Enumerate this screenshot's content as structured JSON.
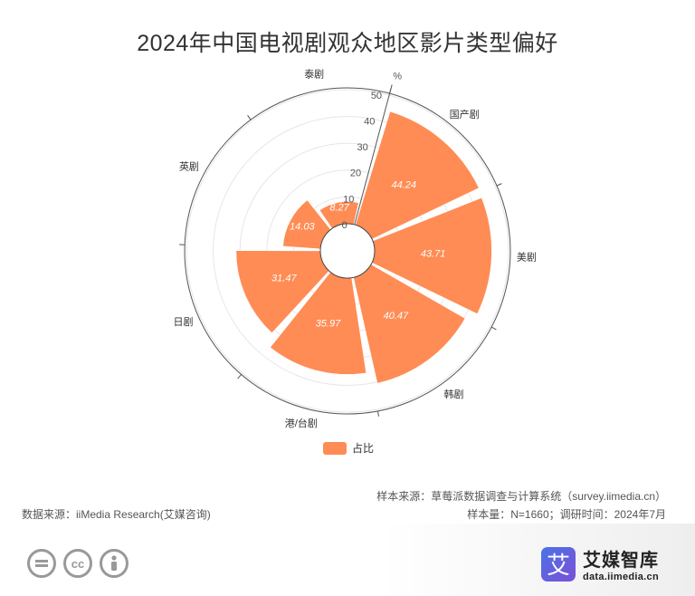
{
  "title": "2024年中国电视剧观众地区影片类型偏好",
  "legend": {
    "label": "占比",
    "color": "#FF8C55"
  },
  "chart_data": {
    "type": "bar",
    "coordinate": "polar",
    "title": "2024年中国电视剧观众地区影片类型偏好",
    "radial_unit": "%",
    "radial_range": [
      0,
      50
    ],
    "radial_ticks": [
      "0",
      "10",
      "20",
      "30",
      "40",
      "50"
    ],
    "categories": [
      "国产剧",
      "美剧",
      "韩剧",
      "港/台剧",
      "日剧",
      "英剧",
      "泰剧"
    ],
    "series": [
      {
        "name": "占比",
        "color": "#FF8C55",
        "values": [
          44.24,
          43.71,
          40.47,
          35.97,
          31.47,
          14.03,
          8.27
        ],
        "labels": [
          "44.24",
          "43.71",
          "40.47",
          "35.97",
          "31.47",
          "14.03",
          "8.27"
        ]
      }
    ],
    "grid": true
  },
  "footer": {
    "data_source": "数据来源：iiMedia Research(艾媒咨询)",
    "sample_source": "样本来源：草莓派数据调查与计算系统（survey.iimedia.cn）",
    "sample_meta": "样本量：N=1660；调研时间：2024年7月"
  },
  "brand": {
    "logo_glyph": "艾",
    "name": "艾媒智库",
    "url": "data.iimedia.cn"
  },
  "icons": [
    "equals-icon",
    "cc-icon",
    "person-icon"
  ]
}
